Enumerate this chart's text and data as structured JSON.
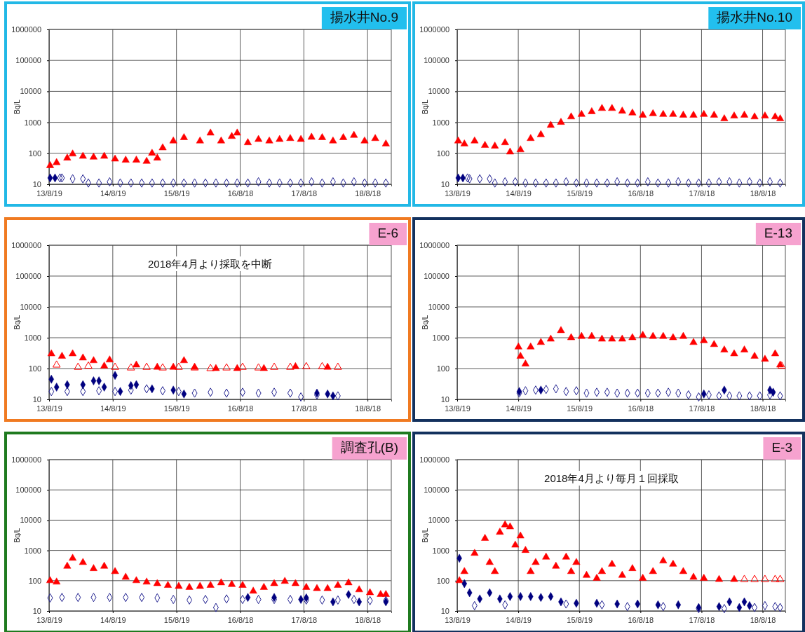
{
  "chart_data": [
    {
      "type": "scatter",
      "title": "揚水井No.9",
      "ylabel": "Bq/L",
      "log": true,
      "grid": true,
      "xlim": [
        "2013-08-19",
        "2019-01-01"
      ],
      "xticks": [
        {
          "value": "2013-08-19",
          "label": "13/8/19"
        },
        {
          "value": "2014-08-19",
          "label": "14/8/19"
        },
        {
          "value": "2015-08-19",
          "label": "15/8/19"
        },
        {
          "value": "2016-08-18",
          "label": "16/8/18"
        },
        {
          "value": "2017-08-18",
          "label": "17/8/18"
        },
        {
          "value": "2018-08-18",
          "label": "18/8/18"
        }
      ],
      "ylim": [
        10,
        1000000
      ],
      "yticks": [
        10,
        100,
        1000,
        10000,
        100000,
        1000000
      ],
      "series": [
        {
          "color": "#ff0000",
          "marker": "triangle",
          "x": [
            "2013-08-25",
            "2013-10",
            "2013-12",
            "2014-01",
            "2014-03",
            "2014-05",
            "2014-07",
            "2014-09",
            "2014-11",
            "2015-01",
            "2015-03",
            "2015-04",
            "2015-05",
            "2015-06",
            "2015-08",
            "2015-10",
            "2016-01",
            "2016-03",
            "2016-05",
            "2016-07",
            "2016-08",
            "2016-10",
            "2016-12",
            "2017-02",
            "2017-04",
            "2017-06",
            "2017-08",
            "2017-10",
            "2017-12",
            "2018-02",
            "2018-04",
            "2018-06",
            "2018-08",
            "2018-10",
            "2018-12"
          ],
          "values": [
            40,
            50,
            70,
            95,
            80,
            75,
            80,
            65,
            60,
            60,
            55,
            100,
            70,
            150,
            250,
            320,
            250,
            450,
            250,
            350,
            450,
            220,
            280,
            250,
            280,
            300,
            280,
            330,
            320,
            250,
            320,
            380,
            250,
            300,
            200
          ]
        },
        {
          "color": "#1f1f8f",
          "marker": "diamond-open",
          "x": [
            "2013-10-20",
            "2013-11",
            "2014-01",
            "2014-03",
            "2014-04",
            "2014-06",
            "2014-08",
            "2014-10",
            "2014-12",
            "2015-02",
            "2015-04",
            "2015-06",
            "2015-08",
            "2015-10",
            "2015-12",
            "2016-02",
            "2016-04",
            "2016-06",
            "2016-08",
            "2016-10",
            "2016-12",
            "2017-02",
            "2017-04",
            "2017-06",
            "2017-08",
            "2017-10",
            "2017-12",
            "2018-02",
            "2018-04",
            "2018-06",
            "2018-08",
            "2018-10",
            "2018-12"
          ],
          "values": [
            16,
            16,
            15,
            15,
            11,
            11,
            12,
            11,
            11,
            11,
            11,
            11,
            11,
            11,
            11,
            11,
            11,
            11,
            11,
            11,
            12,
            11,
            11,
            11,
            11,
            12,
            11,
            12,
            11,
            12,
            11,
            11,
            11
          ]
        },
        {
          "color": "#00007f",
          "marker": "diamond",
          "x": [
            "2013-08-25",
            "2013-09-22"
          ],
          "values": [
            16,
            16
          ]
        }
      ]
    },
    {
      "type": "scatter",
      "title": "揚水井No.10",
      "ylabel": "Bq/L",
      "log": true,
      "grid": true,
      "xlim": [
        "2013-08-19",
        "2019-01-01"
      ],
      "xticks": [
        {
          "value": "2013-08-19",
          "label": "13/8/19"
        },
        {
          "value": "2014-08-19",
          "label": "14/8/19"
        },
        {
          "value": "2015-08-19",
          "label": "15/8/19"
        },
        {
          "value": "2016-08-18",
          "label": "16/8/18"
        },
        {
          "value": "2017-08-18",
          "label": "17/8/18"
        },
        {
          "value": "2018-08-18",
          "label": "18/8/18"
        }
      ],
      "ylim": [
        10,
        1000000
      ],
      "yticks": [
        10,
        100,
        1000,
        10000,
        100000,
        1000000
      ],
      "series": [
        {
          "color": "#ff0000",
          "marker": "triangle",
          "x": [
            "2013-08-25",
            "2013-10",
            "2013-12",
            "2014-02",
            "2014-04",
            "2014-06",
            "2014-07",
            "2014-09",
            "2014-11",
            "2015-01",
            "2015-03",
            "2015-05",
            "2015-07",
            "2015-09",
            "2015-11",
            "2016-01",
            "2016-03",
            "2016-05",
            "2016-07",
            "2016-09",
            "2016-11",
            "2017-01",
            "2017-03",
            "2017-05",
            "2017-07",
            "2017-09",
            "2017-11",
            "2018-01",
            "2018-03",
            "2018-05",
            "2018-07",
            "2018-09",
            "2018-11",
            "2018-12"
          ],
          "values": [
            250,
            200,
            250,
            180,
            170,
            220,
            110,
            130,
            300,
            400,
            800,
            1000,
            1500,
            1800,
            2200,
            2800,
            2800,
            2300,
            2000,
            1700,
            1900,
            1800,
            1800,
            1700,
            1700,
            1800,
            1700,
            1300,
            1600,
            1700,
            1500,
            1600,
            1500,
            1300
          ]
        },
        {
          "color": "#1f1f8f",
          "marker": "diamond-open",
          "x": [
            "2013-10-20",
            "2013-11",
            "2014-01",
            "2014-03",
            "2014-04",
            "2014-06",
            "2014-08",
            "2014-10",
            "2014-12",
            "2015-02",
            "2015-04",
            "2015-06",
            "2015-08",
            "2015-10",
            "2015-12",
            "2016-02",
            "2016-04",
            "2016-06",
            "2016-08",
            "2016-10",
            "2016-12",
            "2017-02",
            "2017-04",
            "2017-06",
            "2017-08",
            "2017-10",
            "2017-12",
            "2018-02",
            "2018-04",
            "2018-06",
            "2018-08",
            "2018-10",
            "2018-12"
          ],
          "values": [
            16,
            15,
            15,
            15,
            11,
            12,
            12,
            11,
            11,
            11,
            11,
            12,
            11,
            11,
            11,
            11,
            12,
            11,
            11,
            12,
            11,
            11,
            12,
            11,
            11,
            11,
            12,
            12,
            11,
            12,
            11,
            12,
            11
          ]
        },
        {
          "color": "#00007f",
          "marker": "diamond",
          "x": [
            "2013-08-25",
            "2013-09-22"
          ],
          "values": [
            16,
            16
          ]
        }
      ]
    },
    {
      "type": "scatter",
      "title": "E-6",
      "ylabel": "Bq/L",
      "log": true,
      "grid": true,
      "annotations": [
        "2018年4月より採取を中断"
      ],
      "xlim": [
        "2013-08-19",
        "2019-01-01"
      ],
      "xticks": [
        {
          "value": "2013-08-19",
          "label": "13/8/19"
        },
        {
          "value": "2014-08-19",
          "label": "14/8/19"
        },
        {
          "value": "2015-08-19",
          "label": "15/8/19"
        },
        {
          "value": "2016-08-18",
          "label": "16/8/18"
        },
        {
          "value": "2017-08-18",
          "label": "17/8/18"
        },
        {
          "value": "2018-08-18",
          "label": "18/8/18"
        }
      ],
      "ylim": [
        10,
        1000000
      ],
      "yticks": [
        10,
        100,
        1000,
        10000,
        100000,
        1000000
      ],
      "series": [
        {
          "color": "#ff0000",
          "marker": "triangle-open",
          "x": [
            "2013-10",
            "2014-02",
            "2014-04",
            "2014-09",
            "2014-12",
            "2015-03",
            "2015-06",
            "2015-09",
            "2015-12",
            "2016-03",
            "2016-06",
            "2016-09",
            "2016-12",
            "2017-03",
            "2017-06",
            "2017-09",
            "2017-12",
            "2018-03"
          ],
          "values": [
            130,
            110,
            120,
            110,
            105,
            110,
            105,
            110,
            105,
            100,
            105,
            110,
            105,
            110,
            110,
            115,
            115,
            110
          ]
        },
        {
          "color": "#ff0000",
          "marker": "triangle",
          "x": [
            "2013-09",
            "2013-11",
            "2014-01",
            "2014-03",
            "2014-05",
            "2014-07",
            "2014-08",
            "2015-01",
            "2015-05",
            "2015-08",
            "2015-10",
            "2015-12",
            "2016-04",
            "2016-08",
            "2017-01",
            "2017-07",
            "2018-01"
          ],
          "values": [
            300,
            250,
            300,
            220,
            180,
            120,
            190,
            130,
            110,
            110,
            180,
            110,
            100,
            100,
            100,
            115,
            110
          ]
        },
        {
          "color": "#1f1f8f",
          "marker": "diamond-open",
          "x": [
            "2013-09",
            "2013-12",
            "2014-03",
            "2014-06",
            "2014-09",
            "2014-12",
            "2015-03",
            "2015-06",
            "2015-09",
            "2015-12",
            "2016-03",
            "2016-06",
            "2016-09",
            "2016-12",
            "2017-03",
            "2017-06",
            "2017-08",
            "2017-11",
            "2018-03"
          ],
          "values": [
            18,
            18,
            18,
            19,
            18,
            20,
            22,
            19,
            18,
            16,
            17,
            16,
            17,
            16,
            17,
            16,
            12,
            14,
            13
          ]
        },
        {
          "color": "#00007f",
          "marker": "diamond",
          "x": [
            "2013-09",
            "2013-10",
            "2013-12",
            "2014-03",
            "2014-05",
            "2014-06",
            "2014-07",
            "2014-09",
            "2014-10",
            "2014-12",
            "2015-01",
            "2015-04",
            "2015-08",
            "2015-10",
            "2017-11",
            "2018-01",
            "2018-02"
          ],
          "values": [
            45,
            25,
            30,
            30,
            40,
            40,
            25,
            60,
            18,
            28,
            30,
            22,
            20,
            15,
            16,
            15,
            13
          ]
        }
      ]
    },
    {
      "type": "scatter",
      "title": "E-13",
      "ylabel": "Bq/L",
      "log": true,
      "grid": true,
      "xlim": [
        "2013-08-19",
        "2019-01-01"
      ],
      "xticks": [
        {
          "value": "2013-08-19",
          "label": "13/8/19"
        },
        {
          "value": "2014-08-19",
          "label": "14/8/19"
        },
        {
          "value": "2015-08-19",
          "label": "15/8/19"
        },
        {
          "value": "2016-08-18",
          "label": "16/8/18"
        },
        {
          "value": "2017-08-18",
          "label": "17/8/18"
        },
        {
          "value": "2018-08-18",
          "label": "18/8/18"
        }
      ],
      "ylim": [
        10,
        1000000
      ],
      "yticks": [
        10,
        100,
        1000,
        10000,
        100000,
        1000000
      ],
      "series": [
        {
          "color": "#ff0000",
          "marker": "triangle",
          "x": [
            "2014-08-20",
            "2014-09",
            "2014-10",
            "2014-11",
            "2015-01",
            "2015-03",
            "2015-05",
            "2015-07",
            "2015-09",
            "2015-11",
            "2016-01",
            "2016-03",
            "2016-05",
            "2016-07",
            "2016-09",
            "2016-11",
            "2017-01",
            "2017-03",
            "2017-05",
            "2017-07",
            "2017-09",
            "2017-11",
            "2018-01",
            "2018-03",
            "2018-05",
            "2018-07",
            "2018-09",
            "2018-11",
            "2018-12"
          ],
          "values": [
            500,
            250,
            140,
            500,
            700,
            900,
            1700,
            1000,
            1100,
            1100,
            900,
            900,
            900,
            1000,
            1200,
            1100,
            1100,
            1000,
            1100,
            700,
            800,
            600,
            400,
            300,
            400,
            250,
            200,
            300,
            130
          ]
        },
        {
          "color": "#ff0000",
          "marker": "triangle-open",
          "x": [
            "2018-12-10"
          ],
          "values": [
            120
          ]
        },
        {
          "color": "#1f1f8f",
          "marker": "diamond-open",
          "x": [
            "2014-08-25",
            "2014-10",
            "2014-12",
            "2015-02",
            "2015-04",
            "2015-06",
            "2015-08",
            "2015-10",
            "2015-12",
            "2016-02",
            "2016-04",
            "2016-06",
            "2016-08",
            "2016-10",
            "2016-12",
            "2017-02",
            "2017-04",
            "2017-06",
            "2017-08",
            "2017-10",
            "2017-12",
            "2018-02",
            "2018-04",
            "2018-06",
            "2018-08",
            "2018-10",
            "2018-12"
          ],
          "values": [
            16,
            19,
            20,
            21,
            22,
            18,
            19,
            16,
            17,
            17,
            16,
            16,
            16,
            16,
            16,
            17,
            16,
            14,
            12,
            14,
            13,
            13,
            13,
            13,
            13,
            14,
            13
          ]
        },
        {
          "color": "#00007f",
          "marker": "diamond",
          "x": [
            "2014-08-25",
            "2015-01",
            "2017-09",
            "2018-01",
            "2018-10",
            "2018-10-20"
          ],
          "values": [
            18,
            20,
            15,
            20,
            20,
            17
          ]
        }
      ]
    },
    {
      "type": "scatter",
      "title": "調査孔(B)",
      "ylabel": "Bq/L",
      "log": true,
      "grid": true,
      "xlim": [
        "2013-08-19",
        "2019-01-01"
      ],
      "xticks": [
        {
          "value": "2013-08-19",
          "label": "13/8/19"
        },
        {
          "value": "2014-08-19",
          "label": "14/8/19"
        },
        {
          "value": "2015-08-19",
          "label": "15/8/19"
        },
        {
          "value": "2016-08-18",
          "label": "16/8/18"
        },
        {
          "value": "2017-08-18",
          "label": "17/8/18"
        },
        {
          "value": "2018-08-18",
          "label": "18/8/18"
        }
      ],
      "ylim": [
        10,
        1000000
      ],
      "yticks": [
        10,
        100,
        1000,
        10000,
        100000,
        1000000
      ],
      "series": [
        {
          "color": "#ff0000",
          "marker": "triangle",
          "x": [
            "2013-08-25",
            "2013-10",
            "2013-12",
            "2014-01",
            "2014-03",
            "2014-05",
            "2014-07",
            "2014-09",
            "2014-11",
            "2015-01",
            "2015-03",
            "2015-05",
            "2015-07",
            "2015-09",
            "2015-11",
            "2016-01",
            "2016-03",
            "2016-05",
            "2016-07",
            "2016-09",
            "2016-11",
            "2017-01",
            "2017-03",
            "2017-05",
            "2017-07",
            "2017-09",
            "2017-11",
            "2018-01",
            "2018-03",
            "2018-05",
            "2018-07",
            "2018-09",
            "2018-11",
            "2018-12"
          ],
          "values": [
            100,
            90,
            300,
            550,
            400,
            250,
            300,
            200,
            130,
            100,
            90,
            80,
            70,
            65,
            60,
            65,
            70,
            85,
            75,
            70,
            45,
            60,
            80,
            95,
            80,
            60,
            55,
            55,
            70,
            85,
            50,
            40,
            35,
            35
          ]
        },
        {
          "color": "#1f1f8f",
          "marker": "diamond-open",
          "x": [
            "2013-08-25",
            "2013-11",
            "2014-02",
            "2014-05",
            "2014-08",
            "2014-11",
            "2015-02",
            "2015-05",
            "2015-08",
            "2015-11",
            "2016-02",
            "2016-04",
            "2016-06",
            "2016-09",
            "2016-12",
            "2017-03",
            "2017-06",
            "2017-09",
            "2017-12",
            "2018-03",
            "2018-06",
            "2018-09",
            "2018-12"
          ],
          "values": [
            27,
            28,
            28,
            28,
            28,
            28,
            28,
            27,
            24,
            23,
            24,
            13,
            25,
            24,
            24,
            24,
            24,
            23,
            23,
            23,
            24,
            22,
            22
          ]
        },
        {
          "color": "#00007f",
          "marker": "diamond",
          "x": [
            "2016-10",
            "2017-03",
            "2017-08",
            "2017-09",
            "2018-02",
            "2018-05",
            "2018-07",
            "2018-12"
          ],
          "values": [
            28,
            28,
            24,
            27,
            20,
            35,
            20,
            20
          ]
        }
      ]
    },
    {
      "type": "scatter",
      "title": "E-3",
      "ylabel": "Bq/L",
      "log": true,
      "grid": true,
      "annotations": [
        "2018年4月より毎月１回採取"
      ],
      "xlim": [
        "2013-08-19",
        "2019-01-01"
      ],
      "xticks": [
        {
          "value": "2013-08-19",
          "label": "13/8/19"
        },
        {
          "value": "2014-08-19",
          "label": "14/8/19"
        },
        {
          "value": "2015-08-19",
          "label": "15/8/19"
        },
        {
          "value": "2016-08-18",
          "label": "16/8/18"
        },
        {
          "value": "2017-08-18",
          "label": "17/8/18"
        },
        {
          "value": "2018-08-18",
          "label": "18/8/18"
        }
      ],
      "ylim": [
        10,
        1000000
      ],
      "yticks": [
        10,
        100,
        1000,
        10000,
        100000,
        1000000
      ],
      "series": [
        {
          "color": "#ff0000",
          "marker": "triangle",
          "x": [
            "2013-09",
            "2013-10",
            "2013-12",
            "2014-02",
            "2014-03",
            "2014-04",
            "2014-05",
            "2014-06",
            "2014-07",
            "2014-08",
            "2014-09",
            "2014-10",
            "2014-11",
            "2014-12",
            "2015-02",
            "2015-04",
            "2015-06",
            "2015-07",
            "2015-08",
            "2015-10",
            "2015-12",
            "2016-01",
            "2016-03",
            "2016-05",
            "2016-07",
            "2016-09",
            "2016-11",
            "2017-01",
            "2017-03",
            "2017-05",
            "2017-07",
            "2017-09",
            "2017-12",
            "2018-03"
          ],
          "values": [
            100,
            200,
            800,
            2500,
            400,
            200,
            4000,
            7000,
            6000,
            1500,
            3000,
            1000,
            200,
            400,
            600,
            300,
            600,
            200,
            400,
            150,
            120,
            200,
            350,
            150,
            250,
            120,
            200,
            450,
            350,
            200,
            130,
            120,
            110,
            110
          ]
        },
        {
          "color": "#ff0000",
          "marker": "triangle-open",
          "x": [
            "2018-05",
            "2018-07",
            "2018-09",
            "2018-11",
            "2018-12"
          ],
          "values": [
            110,
            110,
            110,
            110,
            110
          ]
        },
        {
          "color": "#1f1f8f",
          "marker": "diamond-open",
          "x": [
            "2013-12",
            "2014-06",
            "2015-06",
            "2016-01",
            "2016-06",
            "2017-01",
            "2017-08",
            "2018-01",
            "2018-07",
            "2018-09",
            "2018-11",
            "2018-12"
          ],
          "values": [
            15,
            16,
            17,
            16,
            14,
            14,
            12,
            12,
            13,
            15,
            14,
            13
          ]
        },
        {
          "color": "#00007f",
          "marker": "diamond",
          "x": [
            "2013-09",
            "2013-10",
            "2013-11",
            "2014-01",
            "2014-03",
            "2014-05",
            "2014-07",
            "2014-09",
            "2014-11",
            "2015-01",
            "2015-03",
            "2015-05",
            "2015-08",
            "2015-12",
            "2016-04",
            "2016-08",
            "2016-12",
            "2017-04",
            "2017-08",
            "2017-12",
            "2018-02",
            "2018-04",
            "2018-05",
            "2018-06"
          ],
          "values": [
            550,
            80,
            40,
            25,
            40,
            25,
            30,
            30,
            30,
            28,
            30,
            20,
            18,
            18,
            17,
            17,
            16,
            16,
            13,
            14,
            20,
            13,
            20,
            15
          ]
        }
      ]
    }
  ]
}
